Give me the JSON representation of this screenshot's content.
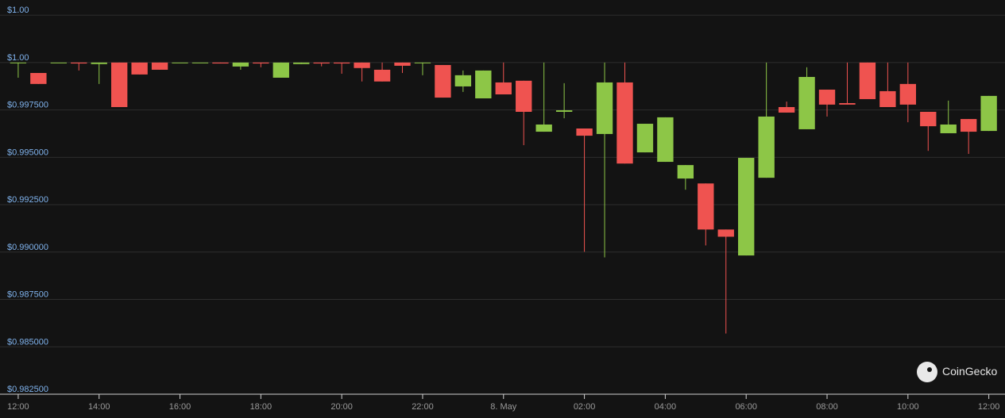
{
  "chart_data": {
    "type": "candlestick",
    "x": [
      0,
      0.5,
      1,
      1.5,
      2,
      2.5,
      3,
      3.5,
      4,
      4.5,
      5,
      5.5,
      6,
      6.5,
      7,
      7.5,
      8,
      8.5,
      9,
      9.5,
      10,
      10.5,
      11,
      11.5,
      12,
      12.5,
      13,
      13.5,
      14,
      14.5,
      15,
      15.5,
      16,
      16.5,
      17,
      17.5,
      18,
      18.5,
      19,
      19.5,
      20,
      20.5,
      21,
      21.5,
      22,
      22.5,
      23,
      23.5,
      24
    ],
    "open": [
      1.0,
      0.99945,
      1.0,
      1.0,
      0.99992,
      1.0,
      1.0,
      1.0,
      1.0,
      1.0,
      1.0,
      0.99979,
      1.0,
      0.9992,
      0.99992,
      1.0,
      1.0,
      1.0,
      0.99962,
      1.0,
      1.0,
      0.99987,
      0.99874,
      0.99811,
      0.99895,
      0.99904,
      0.99635,
      0.9974,
      0.99652,
      0.99623,
      0.99895,
      0.99526,
      0.99476,
      0.99388,
      0.99362,
      0.99119,
      0.98982,
      0.99392,
      0.99765,
      0.99648,
      0.99857,
      0.99786,
      1.0,
      0.99849,
      0.99887,
      0.9974,
      0.99627,
      0.99702,
      0.99639
    ],
    "high": [
      1.0,
      0.99945,
      1.0,
      1.0,
      1.0,
      1.0,
      1.0,
      1.0,
      1.0,
      1.0,
      1.0,
      1.0,
      1.0,
      1.0,
      1.0,
      1.0,
      1.0,
      1.0,
      1.0,
      1.0,
      1.0,
      0.99987,
      0.99958,
      0.99958,
      1.0,
      0.99904,
      1.0,
      0.99891,
      0.99652,
      1.0,
      1.0,
      0.99677,
      0.99711,
      0.99459,
      0.99362,
      0.99119,
      0.99497,
      1.0,
      0.99794,
      0.99975,
      0.99857,
      1.0,
      1.0,
      1.0,
      1.0,
      0.9974,
      0.99799,
      0.99702,
      0.99824
    ],
    "low": [
      0.9992,
      0.99887,
      1.0,
      0.99958,
      0.99887,
      0.99765,
      0.99937,
      0.99962,
      1.0,
      1.0,
      0.99995,
      0.99962,
      0.99975,
      0.9992,
      0.99992,
      0.9998,
      0.99941,
      0.999,
      0.999,
      0.99945,
      0.99933,
      0.99815,
      0.99845,
      0.99811,
      0.99832,
      0.99564,
      0.99635,
      0.99706,
      0.99002,
      0.98972,
      0.99467,
      0.99526,
      0.99476,
      0.99329,
      0.99035,
      0.9857,
      0.98982,
      0.99392,
      0.99736,
      0.99648,
      0.99715,
      0.99778,
      0.99807,
      0.99765,
      0.99685,
      0.99534,
      0.99627,
      0.99518,
      0.99639
    ],
    "close": [
      1.0,
      0.99887,
      1.0,
      0.99995,
      1.0,
      0.99765,
      0.99937,
      0.99962,
      1.0,
      1.0,
      0.99995,
      1.0,
      0.99995,
      1.0,
      1.0,
      0.99995,
      0.99995,
      0.99971,
      0.999,
      0.99983,
      1.0,
      0.99815,
      0.99933,
      0.99958,
      0.99832,
      0.9974,
      0.99673,
      0.99748,
      0.99614,
      0.99895,
      0.99467,
      0.99677,
      0.99711,
      0.99459,
      0.99119,
      0.99081,
      0.99497,
      0.99715,
      0.99736,
      0.99924,
      0.99778,
      0.99778,
      0.99807,
      0.99765,
      0.99778,
      0.99664,
      0.99673,
      0.99635,
      0.99824
    ],
    "up_color": "#8dc647",
    "down_color": "#ef5350",
    "xlim": [
      -0.45,
      24.4
    ],
    "xticks": [
      {
        "value": 0,
        "label": "12:00"
      },
      {
        "value": 2,
        "label": "14:00"
      },
      {
        "value": 4,
        "label": "16:00"
      },
      {
        "value": 6,
        "label": "18:00"
      },
      {
        "value": 8,
        "label": "20:00"
      },
      {
        "value": 10,
        "label": "22:00"
      },
      {
        "value": 12,
        "label": "8. May"
      },
      {
        "value": 14,
        "label": "02:00"
      },
      {
        "value": 16,
        "label": "04:00"
      },
      {
        "value": 18,
        "label": "06:00"
      },
      {
        "value": 20,
        "label": "08:00"
      },
      {
        "value": 22,
        "label": "10:00"
      },
      {
        "value": 24,
        "label": "12:00"
      }
    ],
    "ylim": [
      0.9825,
      1.0033
    ],
    "yticks": [
      {
        "value": 1.0025,
        "label": "$1.00"
      },
      {
        "value": 1.0,
        "label": "$1.00"
      },
      {
        "value": 0.9975,
        "label": "$0.997500"
      },
      {
        "value": 0.995,
        "label": "$0.995000"
      },
      {
        "value": 0.9925,
        "label": "$0.992500"
      },
      {
        "value": 0.99,
        "label": "$0.990000"
      },
      {
        "value": 0.9875,
        "label": "$0.987500"
      },
      {
        "value": 0.985,
        "label": "$0.985000"
      },
      {
        "value": 0.9825,
        "label": "$0.982500"
      }
    ],
    "grid": true,
    "watermark": "CoinGecko"
  }
}
